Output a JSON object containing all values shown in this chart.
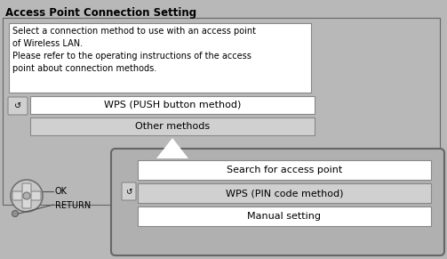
{
  "title": "Access Point Connection Setting",
  "bg_color": "#b8b8b8",
  "main_panel_color": "#b0b0b0",
  "popup_bg": "#b0b0b0",
  "white": "#ffffff",
  "light_gray": "#d0d0d0",
  "text_color": "#000000",
  "desc_text": "Select a connection method to use with an access point\nof Wireless LAN.\nPlease refer to the operating instructions of the access\npoint about connection methods.",
  "btn1_label": "WPS (PUSH button method)",
  "btn2_label": "Other methods",
  "popup_btn1": "Search for access point",
  "popup_btn2": "WPS (PIN code method)",
  "popup_btn3": "Manual setting",
  "ok_label": "OK",
  "return_label": "RETURN",
  "wps_symbol": "↺",
  "edge_color": "#888888",
  "dark_edge": "#666666"
}
